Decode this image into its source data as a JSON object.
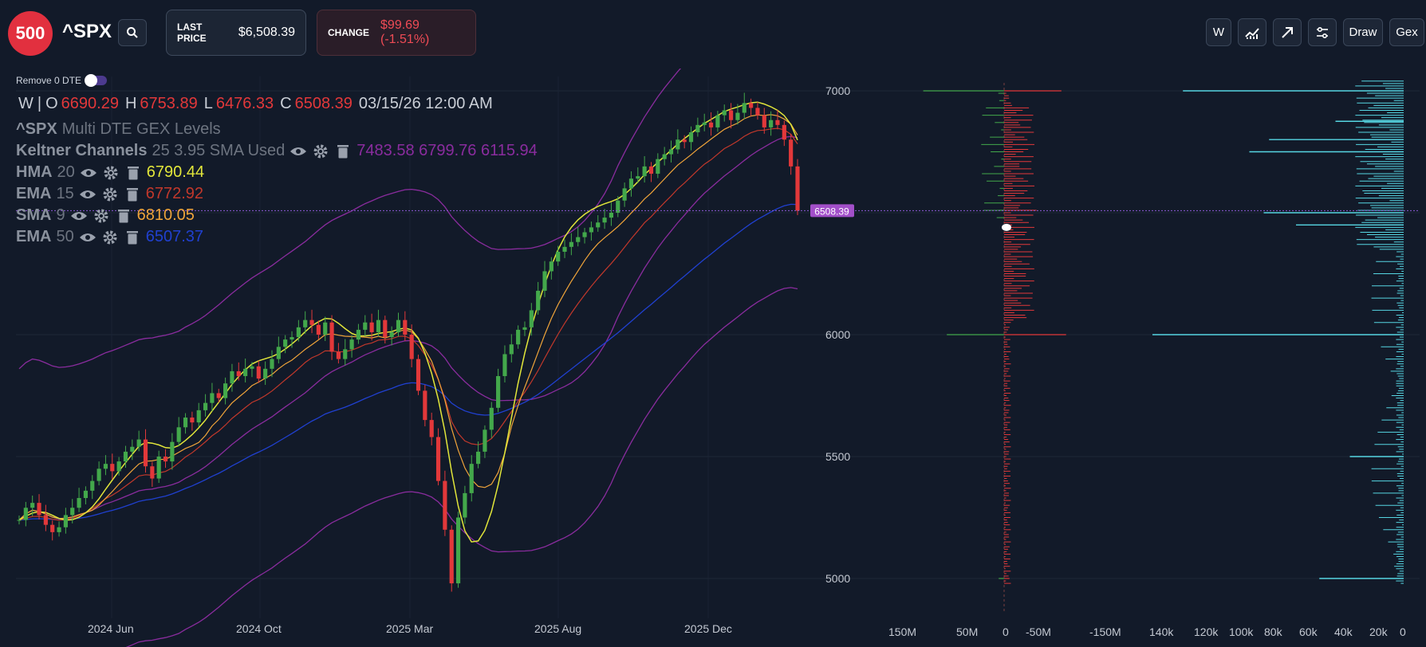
{
  "header": {
    "logo_text": "500",
    "ticker": "^SPX",
    "last_price_label": "LAST PRICE",
    "last_price_value": "$6,508.39",
    "change_label": "CHANGE",
    "change_value": "$99.69 (-1.51%)",
    "toolbar": {
      "w_label": "W",
      "draw_label": "Draw",
      "gex_label": "Gex"
    }
  },
  "toggle_label": "Remove 0 DTE",
  "ohlc": {
    "interval": "W",
    "o_label": "O",
    "o_value": "6690.29",
    "h_label": "H",
    "h_value": "6753.89",
    "l_label": "L",
    "l_value": "6476.33",
    "c_label": "C",
    "c_value": "6508.39",
    "datetime": "03/15/26 12:00 AM"
  },
  "indicators": [
    {
      "name": "^SPX",
      "params": "Multi DTE GEX Levels",
      "values": "",
      "color": "#8a919d"
    },
    {
      "name": "Keltner Channels",
      "params": "25 3.95 SMA Used",
      "values": "7483.58 6799.76 6115.94",
      "color": "#8a2c9e"
    },
    {
      "name": "HMA",
      "params": "20",
      "values": "6790.44",
      "color": "#e2e63a"
    },
    {
      "name": "EMA",
      "params": "15",
      "values": "6772.92",
      "color": "#c2382b"
    },
    {
      "name": "SMA",
      "params": "9",
      "values": "6810.05",
      "color": "#f0a43a"
    },
    {
      "name": "EMA",
      "params": "50",
      "values": "6507.37",
      "color": "#2040d0"
    }
  ],
  "colors": {
    "background": "#121a29",
    "up": "#43a84b",
    "down": "#e2383a",
    "keltner": "#8a2c9e",
    "hma": "#e2e63a",
    "ema15": "#c2382b",
    "sma9": "#f0a43a",
    "ema50": "#2040d0",
    "volume_bar": "#56d6e3",
    "price_tag": "#a24fc9"
  },
  "chart_data": [
    {
      "type": "candlestick",
      "title": "^SPX",
      "interval": "W",
      "x_tick_labels": [
        "2024 Jun",
        "2024 Oct",
        "2025 Mar",
        "2025 Aug",
        "2025 Dec"
      ],
      "y_tick_labels": [
        "7000",
        "6000",
        "5500",
        "5000"
      ],
      "ylim": [
        4850,
        7050
      ],
      "current_price": 6508.39,
      "current_price_label": "6508.39",
      "start_close": 5240,
      "weekly_closes": [
        5240,
        5290,
        5310,
        5260,
        5220,
        5190,
        5210,
        5260,
        5290,
        5330,
        5360,
        5400,
        5450,
        5470,
        5440,
        5480,
        5520,
        5540,
        5570,
        5460,
        5410,
        5500,
        5480,
        5560,
        5620,
        5660,
        5640,
        5690,
        5720,
        5760,
        5740,
        5800,
        5850,
        5830,
        5860,
        5870,
        5820,
        5860,
        5900,
        5950,
        5980,
        5990,
        6030,
        6060,
        6040,
        6000,
        6050,
        5930,
        5900,
        5940,
        5980,
        6020,
        6050,
        6010,
        6060,
        5990,
        6010,
        6060,
        6000,
        5900,
        5770,
        5650,
        5580,
        5400,
        5200,
        4980,
        5250,
        5350,
        5470,
        5520,
        5610,
        5700,
        5830,
        5920,
        5960,
        6020,
        6030,
        6100,
        6180,
        6260,
        6300,
        6340,
        6360,
        6380,
        6400,
        6420,
        6440,
        6460,
        6480,
        6500,
        6550,
        6600,
        6640,
        6650,
        6690,
        6660,
        6720,
        6740,
        6760,
        6800,
        6790,
        6830,
        6860,
        6870,
        6850,
        6900,
        6920,
        6880,
        6910,
        6950,
        6930,
        6900,
        6850,
        6880,
        6860,
        6800,
        6690,
        6508.39
      ],
      "series": [
        {
          "name": "HMA 20",
          "last": 6790.44
        },
        {
          "name": "EMA 15",
          "last": 6772.92
        },
        {
          "name": "SMA 9",
          "last": 6810.05
        },
        {
          "name": "EMA 50",
          "last": 6507.37
        },
        {
          "name": "Keltner Upper",
          "last": 7483.58
        },
        {
          "name": "Keltner Middle",
          "last": 6799.76
        },
        {
          "name": "Keltner Lower",
          "last": 6115.94
        }
      ]
    },
    {
      "type": "bar",
      "title": "Multi DTE GEX Levels",
      "orientation": "horizontal",
      "x_tick_labels": [
        "150M",
        "50M",
        "0",
        "-50M",
        "-150M"
      ],
      "highlighted_levels": [
        {
          "strike": 7000,
          "positive": 120,
          "negative": -85
        },
        {
          "strike": 6510,
          "positive": 8,
          "negative": -48
        },
        {
          "strike": 6000,
          "positive": 85,
          "negative": -92
        },
        {
          "strike": 5000,
          "positive": 8,
          "negative": -8
        }
      ]
    },
    {
      "type": "bar",
      "title": "Open Interest",
      "orientation": "horizontal",
      "x_tick_labels": [
        "140k",
        "120k",
        "100k",
        "80k",
        "60k",
        "40k",
        "20k",
        "0"
      ],
      "xlim": [
        140000,
        0
      ],
      "highlighted_levels": [
        {
          "strike": 7000,
          "value": 123000
        },
        {
          "strike": 6875,
          "value": 38000
        },
        {
          "strike": 6800,
          "value": 75000
        },
        {
          "strike": 6750,
          "value": 86000
        },
        {
          "strike": 6500,
          "value": 78000
        },
        {
          "strike": 6450,
          "value": 60000
        },
        {
          "strike": 6000,
          "value": 140000
        },
        {
          "strike": 5500,
          "value": 30000
        },
        {
          "strike": 5000,
          "value": 47000
        }
      ]
    }
  ]
}
